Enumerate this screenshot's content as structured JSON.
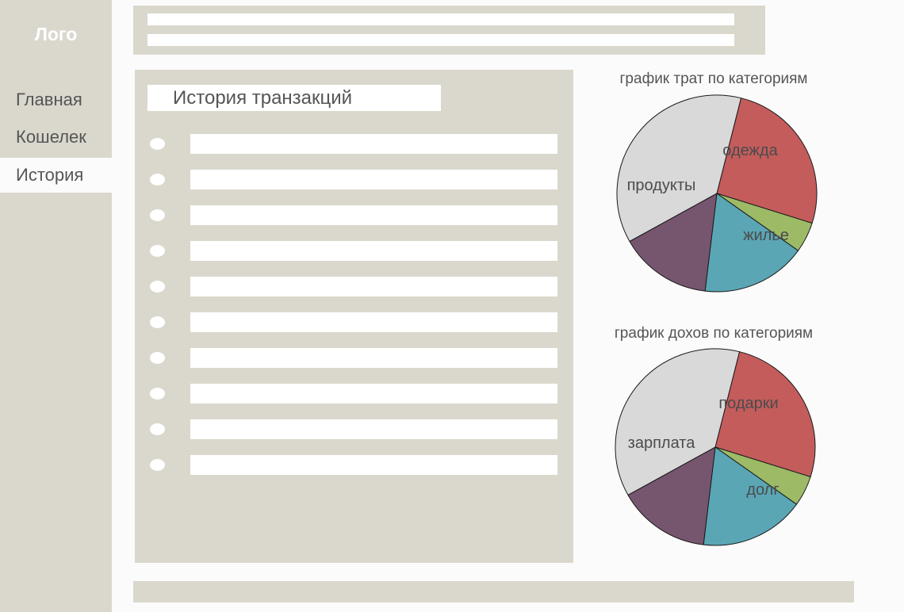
{
  "sidebar": {
    "logo": "Лого",
    "nav": [
      {
        "label": "Главная",
        "active": false
      },
      {
        "label": "Кошелек",
        "active": false
      },
      {
        "label": "История",
        "active": true
      }
    ]
  },
  "history": {
    "title": "История транзакций",
    "row_count": 10
  },
  "expenses_chart": {
    "title": "график трат по категориям",
    "labels": {
      "cat1": "одежда",
      "cat2": "",
      "cat3": "жилье",
      "cat4": "",
      "cat5": "продукты"
    }
  },
  "income_chart": {
    "title": "график дохов по категориям",
    "labels": {
      "cat1": "подарки",
      "cat2": "",
      "cat3": "долг",
      "cat4": "",
      "cat5": "зарплата"
    }
  },
  "colors": {
    "panel": "#dad8cd",
    "background": "#fbfbfb",
    "slice_red": "#c45c5c",
    "slice_green": "#9dba66",
    "slice_teal": "#5aa6b5",
    "slice_purple": "#76566f",
    "slice_grey": "#d9d9d9"
  },
  "chart_data": [
    {
      "type": "pie",
      "title": "график трат по категориям",
      "categories": [
        "одежда",
        "",
        "жилье",
        "",
        "продукты"
      ],
      "values": [
        26,
        5,
        17,
        15,
        37
      ]
    },
    {
      "type": "pie",
      "title": "график дохов по категориям",
      "categories": [
        "подарки",
        "",
        "долг",
        "",
        "зарплата"
      ],
      "values": [
        26,
        5,
        17,
        15,
        37
      ]
    }
  ]
}
